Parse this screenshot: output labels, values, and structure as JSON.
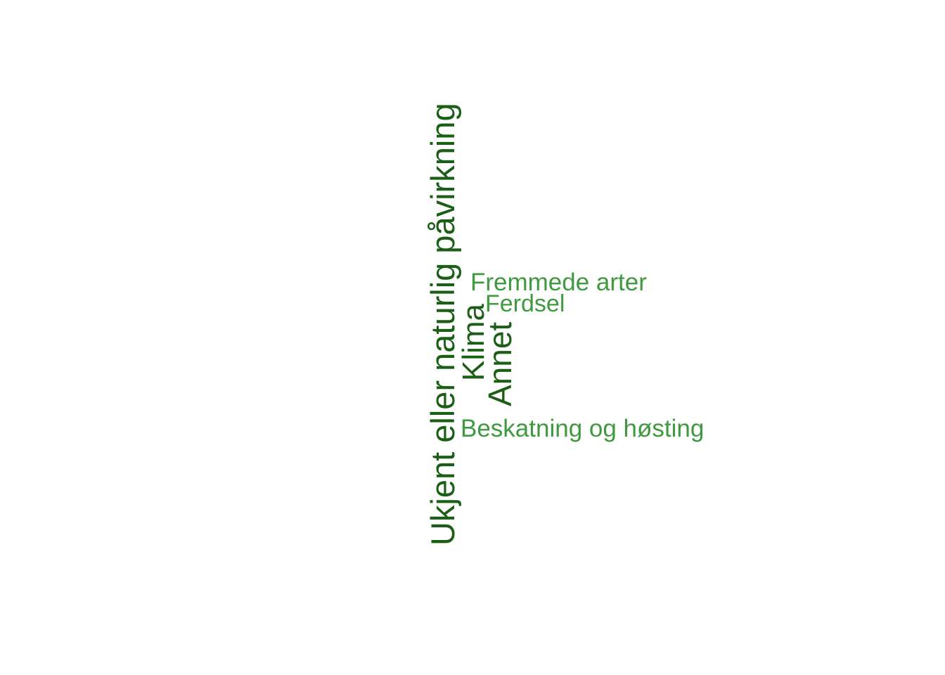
{
  "colors": {
    "dark_green": "#1b5e16",
    "light_green": "#3f9a3f",
    "background": "#ffffff"
  },
  "words": {
    "ukjent": "Ukjent eller naturlig påvirkning",
    "klima": "Klima",
    "annet": "Annet",
    "fremmede": "Fremmede arter",
    "ferdsel": "Ferdsel",
    "beskatning": "Beskatning og høsting"
  }
}
